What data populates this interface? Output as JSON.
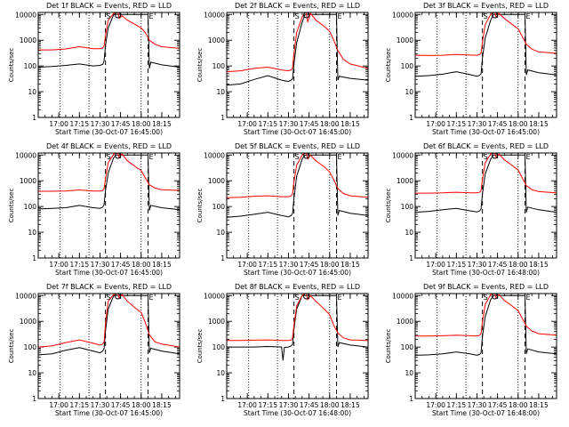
{
  "figure": {
    "background": "#ffffff",
    "axis_color": "#000000",
    "colors": {
      "events": "#000000",
      "lld": "#ff0000"
    }
  },
  "shared_axes": {
    "x_tick_labels": [
      "17:00",
      "17:15",
      "17:30",
      "17:45",
      "18:00",
      "18:15"
    ],
    "x_tick_minutes": [
      1020,
      1035,
      1050,
      1065,
      1080,
      1095
    ],
    "xlim_minutes": [
      1005,
      1108
    ],
    "ylabel": "Counts/sec",
    "y_tick_labels": [
      "1",
      "10",
      "100",
      "1000",
      "10000"
    ],
    "y_tick_values": [
      1,
      10,
      100,
      1000,
      10000
    ],
    "ylim": [
      1,
      12000
    ],
    "yscale": "log"
  },
  "markers": {
    "dotted_minutes": [
      1021,
      1042,
      1080
    ],
    "dashed_minutes": [
      1054,
      1085
    ],
    "label_S": "S",
    "label_E": "E",
    "label_S_minute": 1054,
    "label_E_minute": 1085,
    "circle_minute": 1063
  },
  "chart_data": [
    {
      "type": "line",
      "yscale": "log",
      "title": "Det 1f BLACK = Events, RED = LLD",
      "xlabel": "Start Time (30-Oct-07 16:45:00)",
      "ylabel": "Counts/sec",
      "series": [
        {
          "color": "#000000",
          "x": [
            1005,
            1015,
            1025,
            1035,
            1045,
            1050,
            1052,
            1053,
            1054,
            1056,
            1060,
            1062,
            1065,
            1072,
            1076,
            1080,
            1082,
            1085,
            1086,
            1087,
            1095,
            1108
          ],
          "y": [
            90,
            95,
            105,
            120,
            100,
            105,
            115,
            160,
            600,
            3000,
            10000,
            10000,
            10000,
            10000,
            10000,
            10000,
            10000,
            10000,
            80,
            140,
            110,
            90
          ]
        },
        {
          "color": "#ff0000",
          "x": [
            1005,
            1015,
            1025,
            1035,
            1045,
            1050,
            1052,
            1053,
            1054,
            1056,
            1060,
            1062,
            1063,
            1064,
            1066,
            1070,
            1076,
            1080,
            1083,
            1086,
            1090,
            1095,
            1108
          ],
          "y": [
            420,
            420,
            460,
            560,
            470,
            470,
            500,
            600,
            1500,
            6000,
            11000,
            12000,
            12000,
            7000,
            9000,
            6000,
            4000,
            3000,
            2000,
            1000,
            700,
            560,
            480
          ]
        }
      ]
    },
    {
      "type": "line",
      "yscale": "log",
      "title": "Det 2f BLACK = Events, RED = LLD",
      "xlabel": "Start Time (30-Oct-07 16:45:00)",
      "ylabel": "Counts/sec",
      "series": [
        {
          "color": "#000000",
          "x": [
            1005,
            1015,
            1025,
            1035,
            1045,
            1050,
            1052,
            1053,
            1054,
            1056,
            1060,
            1062,
            1065,
            1072,
            1076,
            1080,
            1082,
            1085,
            1086,
            1087,
            1095,
            1108
          ],
          "y": [
            18,
            20,
            30,
            42,
            28,
            25,
            28,
            32,
            120,
            800,
            5000,
            10000,
            10000,
            10000,
            10000,
            10000,
            10000,
            10000,
            28,
            40,
            33,
            28
          ]
        },
        {
          "color": "#ff0000",
          "x": [
            1005,
            1015,
            1025,
            1035,
            1045,
            1050,
            1052,
            1053,
            1054,
            1056,
            1060,
            1062,
            1063,
            1064,
            1066,
            1070,
            1076,
            1080,
            1083,
            1086,
            1090,
            1095,
            1108
          ],
          "y": [
            60,
            65,
            80,
            90,
            70,
            65,
            70,
            85,
            300,
            2000,
            8000,
            12000,
            12000,
            5000,
            11000,
            6000,
            3500,
            2200,
            1000,
            400,
            180,
            120,
            80
          ]
        }
      ]
    },
    {
      "type": "line",
      "yscale": "log",
      "title": "Det 3f BLACK = Events, RED = LLD",
      "xlabel": "Start Time (30-Oct-07 16:45:00)",
      "ylabel": "Counts/sec",
      "series": [
        {
          "color": "#000000",
          "x": [
            1005,
            1015,
            1025,
            1035,
            1045,
            1050,
            1052,
            1053,
            1054,
            1056,
            1060,
            1062,
            1065,
            1072,
            1076,
            1080,
            1082,
            1085,
            1086,
            1087,
            1095,
            1108
          ],
          "y": [
            40,
            42,
            48,
            60,
            46,
            40,
            44,
            50,
            200,
            1200,
            6000,
            10000,
            10000,
            10000,
            10000,
            10000,
            10000,
            10000,
            45,
            70,
            55,
            45
          ]
        },
        {
          "color": "#ff0000",
          "x": [
            1005,
            1015,
            1025,
            1035,
            1045,
            1050,
            1052,
            1053,
            1054,
            1056,
            1060,
            1062,
            1063,
            1064,
            1066,
            1070,
            1076,
            1080,
            1083,
            1086,
            1090,
            1095,
            1108
          ],
          "y": [
            260,
            255,
            260,
            280,
            265,
            260,
            280,
            320,
            800,
            4000,
            10000,
            12000,
            12000,
            8000,
            11000,
            7000,
            4000,
            2800,
            1400,
            700,
            450,
            350,
            310
          ]
        }
      ]
    },
    {
      "type": "line",
      "yscale": "log",
      "title": "Det 4f BLACK = Events, RED = LLD",
      "xlabel": "Start Time (30-Oct-07 16:45:00)",
      "ylabel": "Counts/sec",
      "series": [
        {
          "color": "#000000",
          "x": [
            1005,
            1015,
            1025,
            1035,
            1045,
            1050,
            1052,
            1053,
            1054,
            1056,
            1060,
            1062,
            1065,
            1072,
            1076,
            1080,
            1082,
            1085,
            1086,
            1087,
            1095,
            1108
          ],
          "y": [
            80,
            85,
            90,
            110,
            90,
            85,
            95,
            120,
            400,
            2000,
            8000,
            10000,
            10000,
            10000,
            10000,
            10000,
            10000,
            10000,
            70,
            110,
            90,
            75
          ]
        },
        {
          "color": "#ff0000",
          "x": [
            1005,
            1015,
            1025,
            1035,
            1045,
            1050,
            1052,
            1053,
            1054,
            1056,
            1060,
            1062,
            1063,
            1064,
            1066,
            1070,
            1076,
            1080,
            1083,
            1086,
            1090,
            1095,
            1108
          ],
          "y": [
            390,
            390,
            400,
            440,
            400,
            400,
            420,
            500,
            1200,
            5000,
            11000,
            12000,
            12000,
            8000,
            11000,
            6000,
            3500,
            2500,
            1300,
            700,
            520,
            450,
            420
          ]
        }
      ]
    },
    {
      "type": "line",
      "yscale": "log",
      "title": "Det 5f BLACK = Events, RED = LLD",
      "xlabel": "Start Time (30-Oct-07 16:45:00)",
      "ylabel": "Counts/sec",
      "series": [
        {
          "color": "#000000",
          "x": [
            1005,
            1015,
            1025,
            1035,
            1045,
            1050,
            1052,
            1053,
            1054,
            1056,
            1060,
            1062,
            1065,
            1072,
            1076,
            1080,
            1082,
            1085,
            1086,
            1087,
            1095,
            1108
          ],
          "y": [
            38,
            42,
            50,
            60,
            45,
            40,
            45,
            55,
            200,
            1500,
            7000,
            10000,
            10000,
            10000,
            10000,
            10000,
            10000,
            10000,
            45,
            70,
            55,
            45
          ]
        },
        {
          "color": "#ff0000",
          "x": [
            1005,
            1015,
            1025,
            1035,
            1045,
            1050,
            1052,
            1053,
            1054,
            1056,
            1060,
            1062,
            1063,
            1064,
            1066,
            1070,
            1076,
            1080,
            1083,
            1086,
            1090,
            1095,
            1108
          ],
          "y": [
            220,
            230,
            250,
            260,
            240,
            240,
            260,
            320,
            900,
            4000,
            10000,
            12000,
            12000,
            7000,
            10000,
            6000,
            3500,
            2200,
            1100,
            500,
            320,
            260,
            230
          ]
        }
      ]
    },
    {
      "type": "line",
      "yscale": "log",
      "title": "Det 6f BLACK = Events, RED = LLD",
      "xlabel": "Start Time (30-Oct-07 16:48:00)",
      "ylabel": "Counts/sec",
      "series": [
        {
          "color": "#000000",
          "x": [
            1005,
            1015,
            1025,
            1035,
            1045,
            1050,
            1052,
            1053,
            1054,
            1056,
            1060,
            1062,
            1065,
            1072,
            1076,
            1080,
            1082,
            1085,
            1086,
            1087,
            1095,
            1108
          ],
          "y": [
            60,
            65,
            75,
            85,
            68,
            62,
            68,
            80,
            300,
            1800,
            7000,
            10000,
            10000,
            10000,
            10000,
            10000,
            10000,
            10000,
            60,
            95,
            75,
            60
          ]
        },
        {
          "color": "#ff0000",
          "x": [
            1005,
            1015,
            1025,
            1035,
            1045,
            1050,
            1052,
            1053,
            1054,
            1056,
            1060,
            1062,
            1063,
            1064,
            1066,
            1070,
            1076,
            1080,
            1083,
            1086,
            1090,
            1095,
            1108
          ],
          "y": [
            330,
            330,
            340,
            360,
            340,
            340,
            360,
            420,
            1100,
            5000,
            11000,
            12000,
            12000,
            8000,
            11000,
            6500,
            3800,
            2600,
            1300,
            650,
            450,
            380,
            340
          ]
        }
      ]
    },
    {
      "type": "line",
      "yscale": "log",
      "title": "Det 7f BLACK = Events, RED = LLD",
      "xlabel": "Start Time (30-Oct-07 16:45:00)",
      "ylabel": "Counts/sec",
      "series": [
        {
          "color": "#000000",
          "x": [
            1005,
            1015,
            1025,
            1035,
            1045,
            1050,
            1052,
            1053,
            1054,
            1056,
            1060,
            1062,
            1065,
            1072,
            1076,
            1080,
            1082,
            1085,
            1086,
            1087,
            1095,
            1108
          ],
          "y": [
            50,
            55,
            75,
            95,
            70,
            60,
            70,
            90,
            400,
            3000,
            10000,
            10000,
            10000,
            10000,
            10000,
            10000,
            10000,
            10000,
            60,
            90,
            70,
            55
          ]
        },
        {
          "color": "#ff0000",
          "x": [
            1005,
            1015,
            1025,
            1035,
            1045,
            1050,
            1052,
            1053,
            1054,
            1056,
            1060,
            1062,
            1063,
            1064,
            1066,
            1070,
            1076,
            1080,
            1083,
            1086,
            1090,
            1095,
            1108
          ],
          "y": [
            100,
            110,
            150,
            190,
            140,
            120,
            130,
            160,
            800,
            6000,
            11000,
            12000,
            12000,
            8000,
            11000,
            6000,
            3200,
            2200,
            900,
            300,
            160,
            130,
            100
          ]
        }
      ]
    },
    {
      "type": "line",
      "yscale": "log",
      "title": "Det 8f BLACK = Events, RED = LLD",
      "xlabel": "Start Time (30-Oct-07 16:48:00)",
      "ylabel": "Counts/sec",
      "series": [
        {
          "color": "#000000",
          "x": [
            1005,
            1015,
            1025,
            1035,
            1045,
            1046,
            1047,
            1050,
            1052,
            1053,
            1054,
            1056,
            1060,
            1062,
            1065,
            1072,
            1076,
            1080,
            1082,
            1085,
            1086,
            1087,
            1095,
            1108
          ],
          "y": [
            100,
            100,
            100,
            105,
            100,
            30,
            95,
            100,
            110,
            130,
            500,
            3000,
            10000,
            10000,
            10000,
            10000,
            10000,
            10000,
            10000,
            10000,
            100,
            150,
            120,
            100
          ]
        },
        {
          "color": "#ff0000",
          "x": [
            1005,
            1015,
            1025,
            1035,
            1045,
            1050,
            1052,
            1053,
            1054,
            1056,
            1060,
            1062,
            1063,
            1064,
            1066,
            1070,
            1076,
            1080,
            1083,
            1086,
            1090,
            1095,
            1108
          ],
          "y": [
            180,
            180,
            185,
            190,
            180,
            180,
            190,
            220,
            700,
            4000,
            10000,
            12000,
            12000,
            7000,
            10000,
            6000,
            3000,
            1800,
            700,
            350,
            230,
            190,
            180
          ]
        }
      ]
    },
    {
      "type": "line",
      "yscale": "log",
      "title": "Det 9f BLACK = Events, RED = LLD",
      "xlabel": "Start Time (30-Oct-07 16:48:00)",
      "ylabel": "Counts/sec",
      "series": [
        {
          "color": "#000000",
          "x": [
            1005,
            1015,
            1025,
            1035,
            1045,
            1050,
            1052,
            1053,
            1054,
            1056,
            1060,
            1062,
            1065,
            1072,
            1076,
            1080,
            1082,
            1085,
            1086,
            1087,
            1095,
            1108
          ],
          "y": [
            48,
            50,
            55,
            65,
            55,
            48,
            52,
            60,
            250,
            1500,
            7000,
            10000,
            10000,
            10000,
            10000,
            10000,
            10000,
            10000,
            55,
            85,
            65,
            55
          ]
        },
        {
          "color": "#ff0000",
          "x": [
            1005,
            1015,
            1025,
            1035,
            1045,
            1050,
            1052,
            1053,
            1054,
            1056,
            1060,
            1062,
            1063,
            1064,
            1066,
            1070,
            1076,
            1080,
            1083,
            1086,
            1090,
            1095,
            1108
          ],
          "y": [
            270,
            270,
            275,
            290,
            275,
            270,
            290,
            340,
            900,
            4500,
            11000,
            12000,
            12000,
            8000,
            11000,
            6500,
            3800,
            2600,
            1300,
            650,
            420,
            330,
            290
          ]
        }
      ]
    }
  ]
}
